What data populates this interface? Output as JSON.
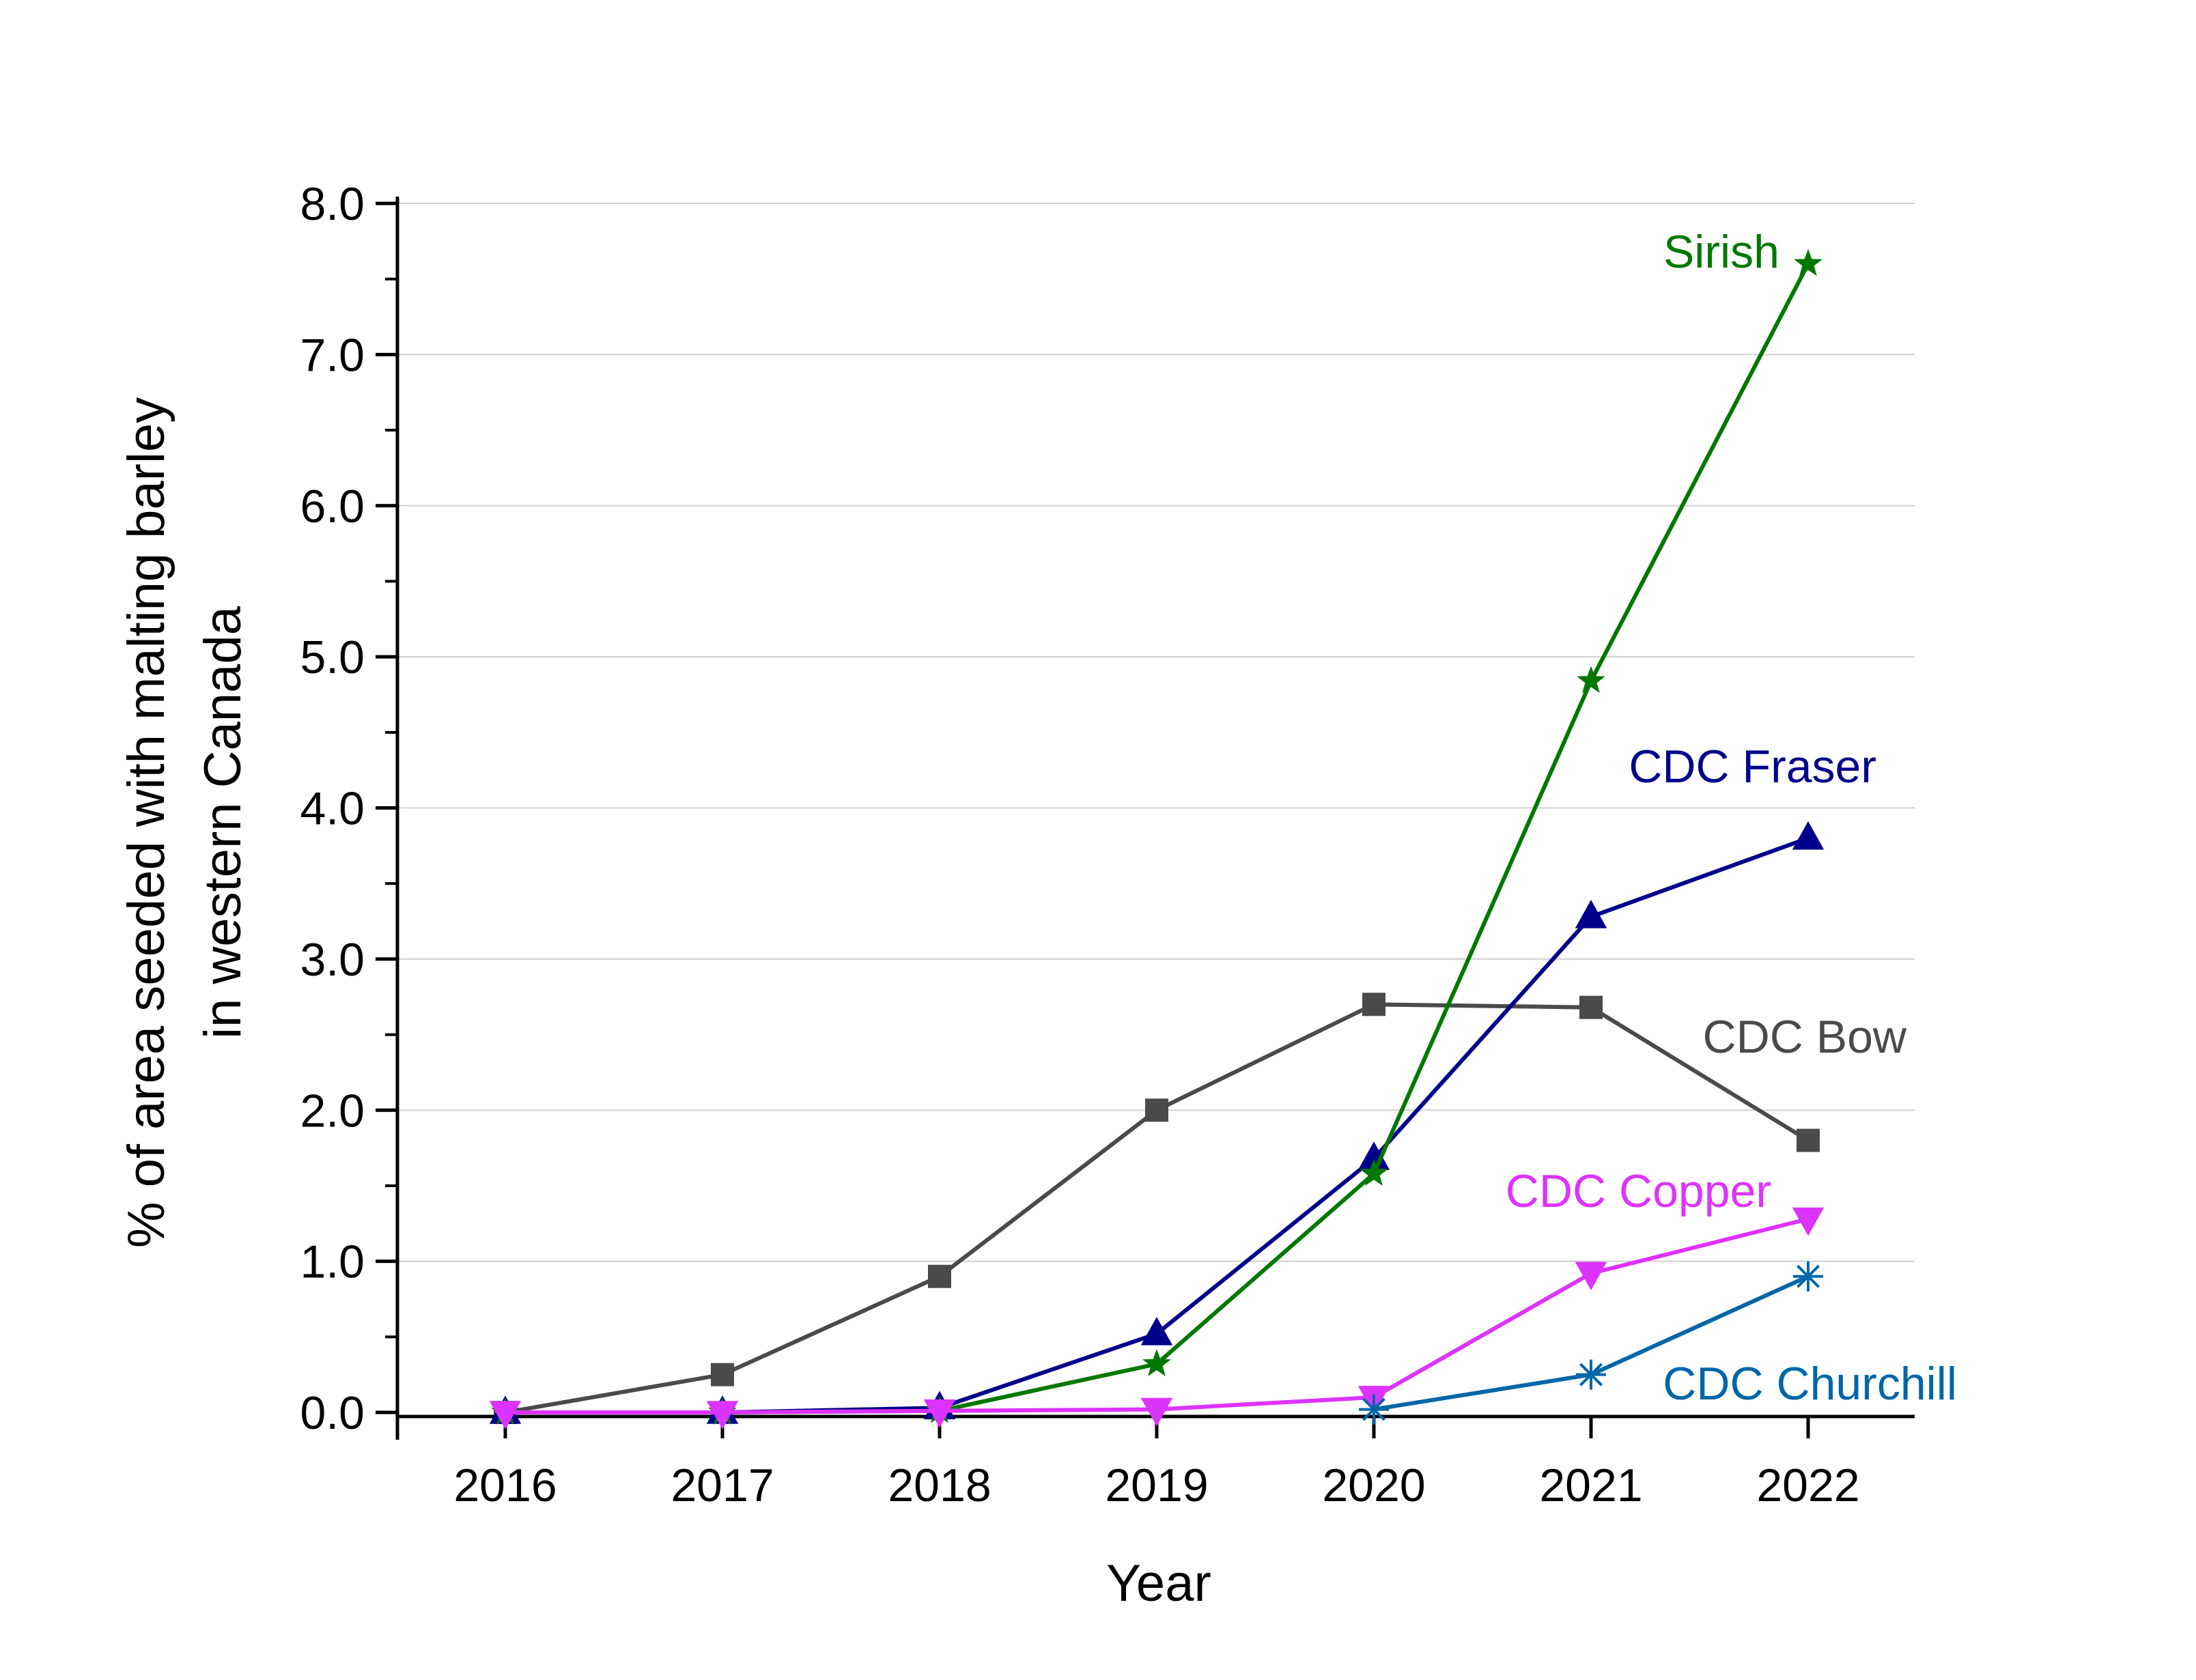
{
  "chart_data": {
    "type": "line",
    "title": "",
    "xlabel": "Year",
    "ylabel_line1": "% of area seeded with malting barley",
    "ylabel_line2": "in western Canada",
    "categories": [
      "2016",
      "2017",
      "2018",
      "2019",
      "2020",
      "2021",
      "2022"
    ],
    "yticks": [
      "0.0",
      "1.0",
      "2.0",
      "3.0",
      "4.0",
      "5.0",
      "6.0",
      "7.0",
      "8.0"
    ],
    "ylim": [
      0,
      8
    ],
    "grid": true,
    "series": [
      {
        "name": "CDC Bow",
        "color": "#4a4a4a",
        "marker": "square",
        "x": [
          "2016",
          "2017",
          "2018",
          "2019",
          "2020",
          "2021",
          "2022"
        ],
        "values": [
          0.0,
          0.25,
          0.9,
          2.0,
          2.7,
          2.68,
          1.8
        ]
      },
      {
        "name": "CDC Fraser",
        "color": "#00008b",
        "marker": "triangle-up",
        "x": [
          "2016",
          "2017",
          "2018",
          "2019",
          "2020",
          "2021",
          "2022"
        ],
        "values": [
          0.0,
          0.0,
          0.03,
          0.52,
          1.68,
          3.28,
          3.8
        ]
      },
      {
        "name": "Sirish",
        "color": "#007800",
        "marker": "star",
        "x": [
          "2016",
          "2017",
          "2018",
          "2019",
          "2020",
          "2021",
          "2022"
        ],
        "values": [
          0.0,
          0.0,
          0.01,
          0.32,
          1.58,
          4.84,
          7.6
        ]
      },
      {
        "name": "CDC Copper",
        "color": "#dd33ff",
        "marker": "triangle-down",
        "x": [
          "2016",
          "2017",
          "2018",
          "2019",
          "2020",
          "2021",
          "2022"
        ],
        "values": [
          0.0,
          0.0,
          0.01,
          0.02,
          0.1,
          0.92,
          1.28
        ]
      },
      {
        "name": "CDC Churchill",
        "color": "#0066a8",
        "marker": "asterisk",
        "x": [
          "2020",
          "2021",
          "2022"
        ],
        "values": [
          0.02,
          0.25,
          0.9
        ]
      }
    ]
  }
}
